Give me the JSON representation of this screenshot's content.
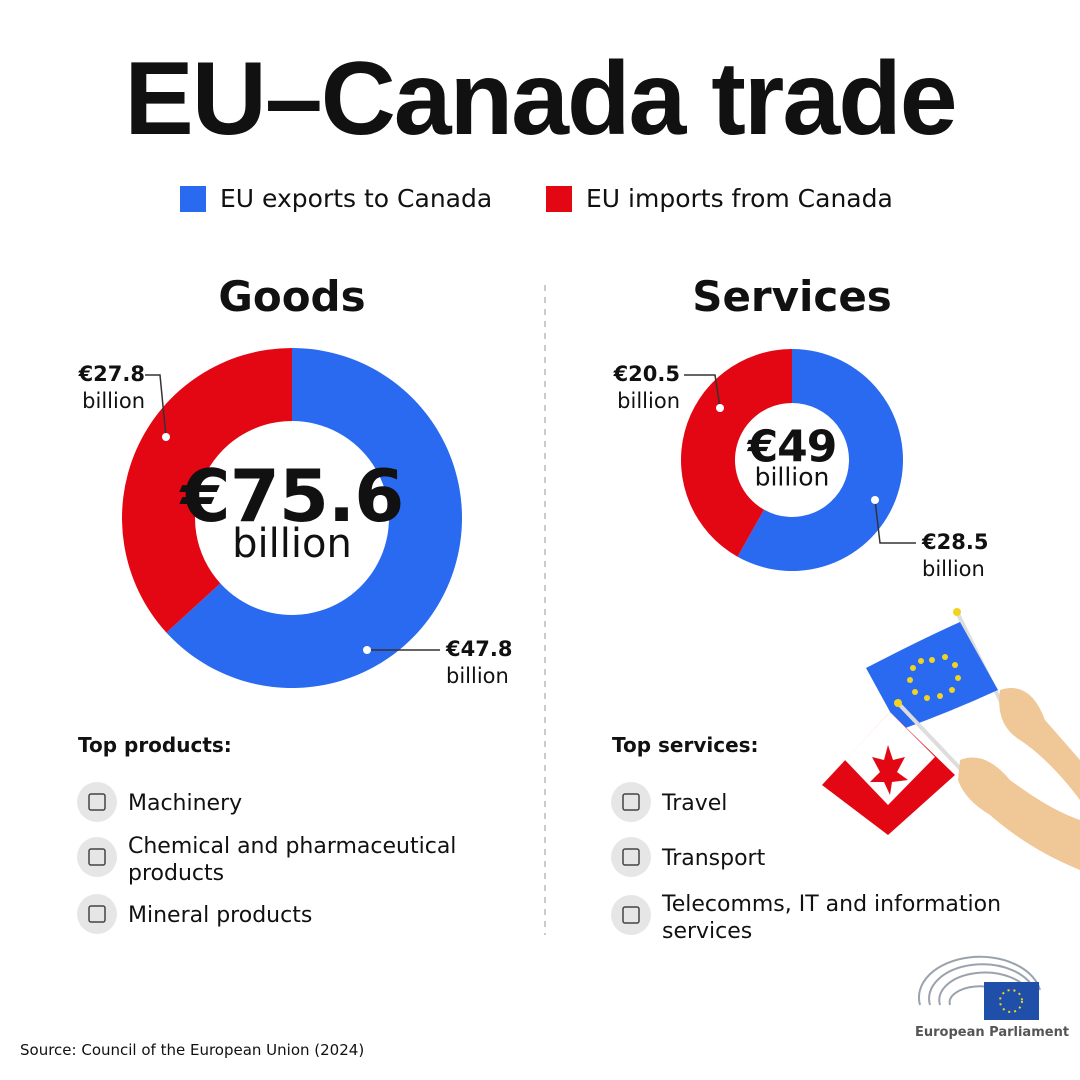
{
  "title": "EU–Canada trade",
  "chart_data": [
    {
      "type": "donut",
      "title": "Goods",
      "categories": [
        "EU exports to Canada",
        "EU imports from Canada"
      ],
      "values": [
        47.8,
        27.8
      ],
      "colors": [
        "#2a6af0",
        "#e30613"
      ],
      "value_labels": [
        "€47.8",
        "€27.8"
      ],
      "unit": "billion",
      "total": 75.6,
      "total_label": "€75.6",
      "top_heading": "Top products:",
      "top_items": [
        "Machinery",
        "Chemical and pharmaceutical products",
        "Mineral products"
      ]
    },
    {
      "type": "donut",
      "title": "Services",
      "categories": [
        "EU exports to Canada",
        "EU imports from Canada"
      ],
      "values": [
        28.5,
        20.5
      ],
      "colors": [
        "#2a6af0",
        "#e30613"
      ],
      "value_labels": [
        "€28.5",
        "€20.5"
      ],
      "unit": "billion",
      "total": 49,
      "total_label": "€49",
      "top_heading": "Top services:",
      "top_items": [
        "Travel",
        "Transport",
        "Telecomms, IT and information services"
      ]
    }
  ],
  "source": "Source: Council of the European Union (2024)",
  "logo_text": "European Parliament"
}
